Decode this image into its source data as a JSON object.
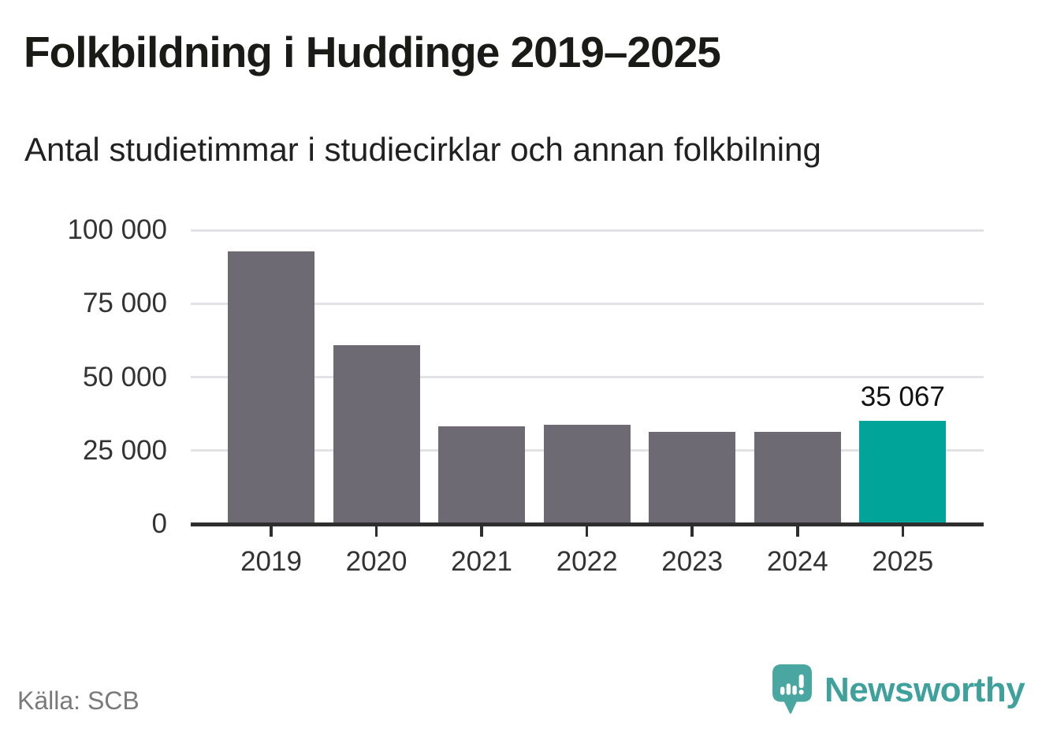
{
  "header": {
    "title": "Folkbildning i Huddinge 2019–2025",
    "subtitle": "Antal studietimmar i studiecirklar och annan folkbilning"
  },
  "chart_data": {
    "type": "bar",
    "title": "Folkbildning i Huddinge 2019–2025",
    "subtitle": "Antal studietimmar i studiecirklar och annan folkbilning",
    "categories": [
      "2019",
      "2020",
      "2021",
      "2022",
      "2023",
      "2024",
      "2025"
    ],
    "values": [
      92700,
      60800,
      33300,
      33800,
      31500,
      31400,
      35067
    ],
    "highlight_index": 6,
    "bar_label": {
      "index": 6,
      "text": "35 067"
    },
    "ylim": [
      0,
      100000
    ],
    "yticks": [
      0,
      25000,
      50000,
      75000,
      100000
    ],
    "ytick_labels": [
      "0",
      "25 000",
      "50 000",
      "75 000",
      "100 000"
    ],
    "grid": true,
    "legend": "none",
    "colors": {
      "bar": "#6d6a74",
      "highlight": "#00a499",
      "gridline": "#e3e2e5",
      "axis": "#2e2e2e",
      "tick_label": "#333333"
    }
  },
  "footer": {
    "source_label": "Källa: SCB",
    "brand_name": "Newsworthy",
    "brand_color": "#3ea19c"
  }
}
